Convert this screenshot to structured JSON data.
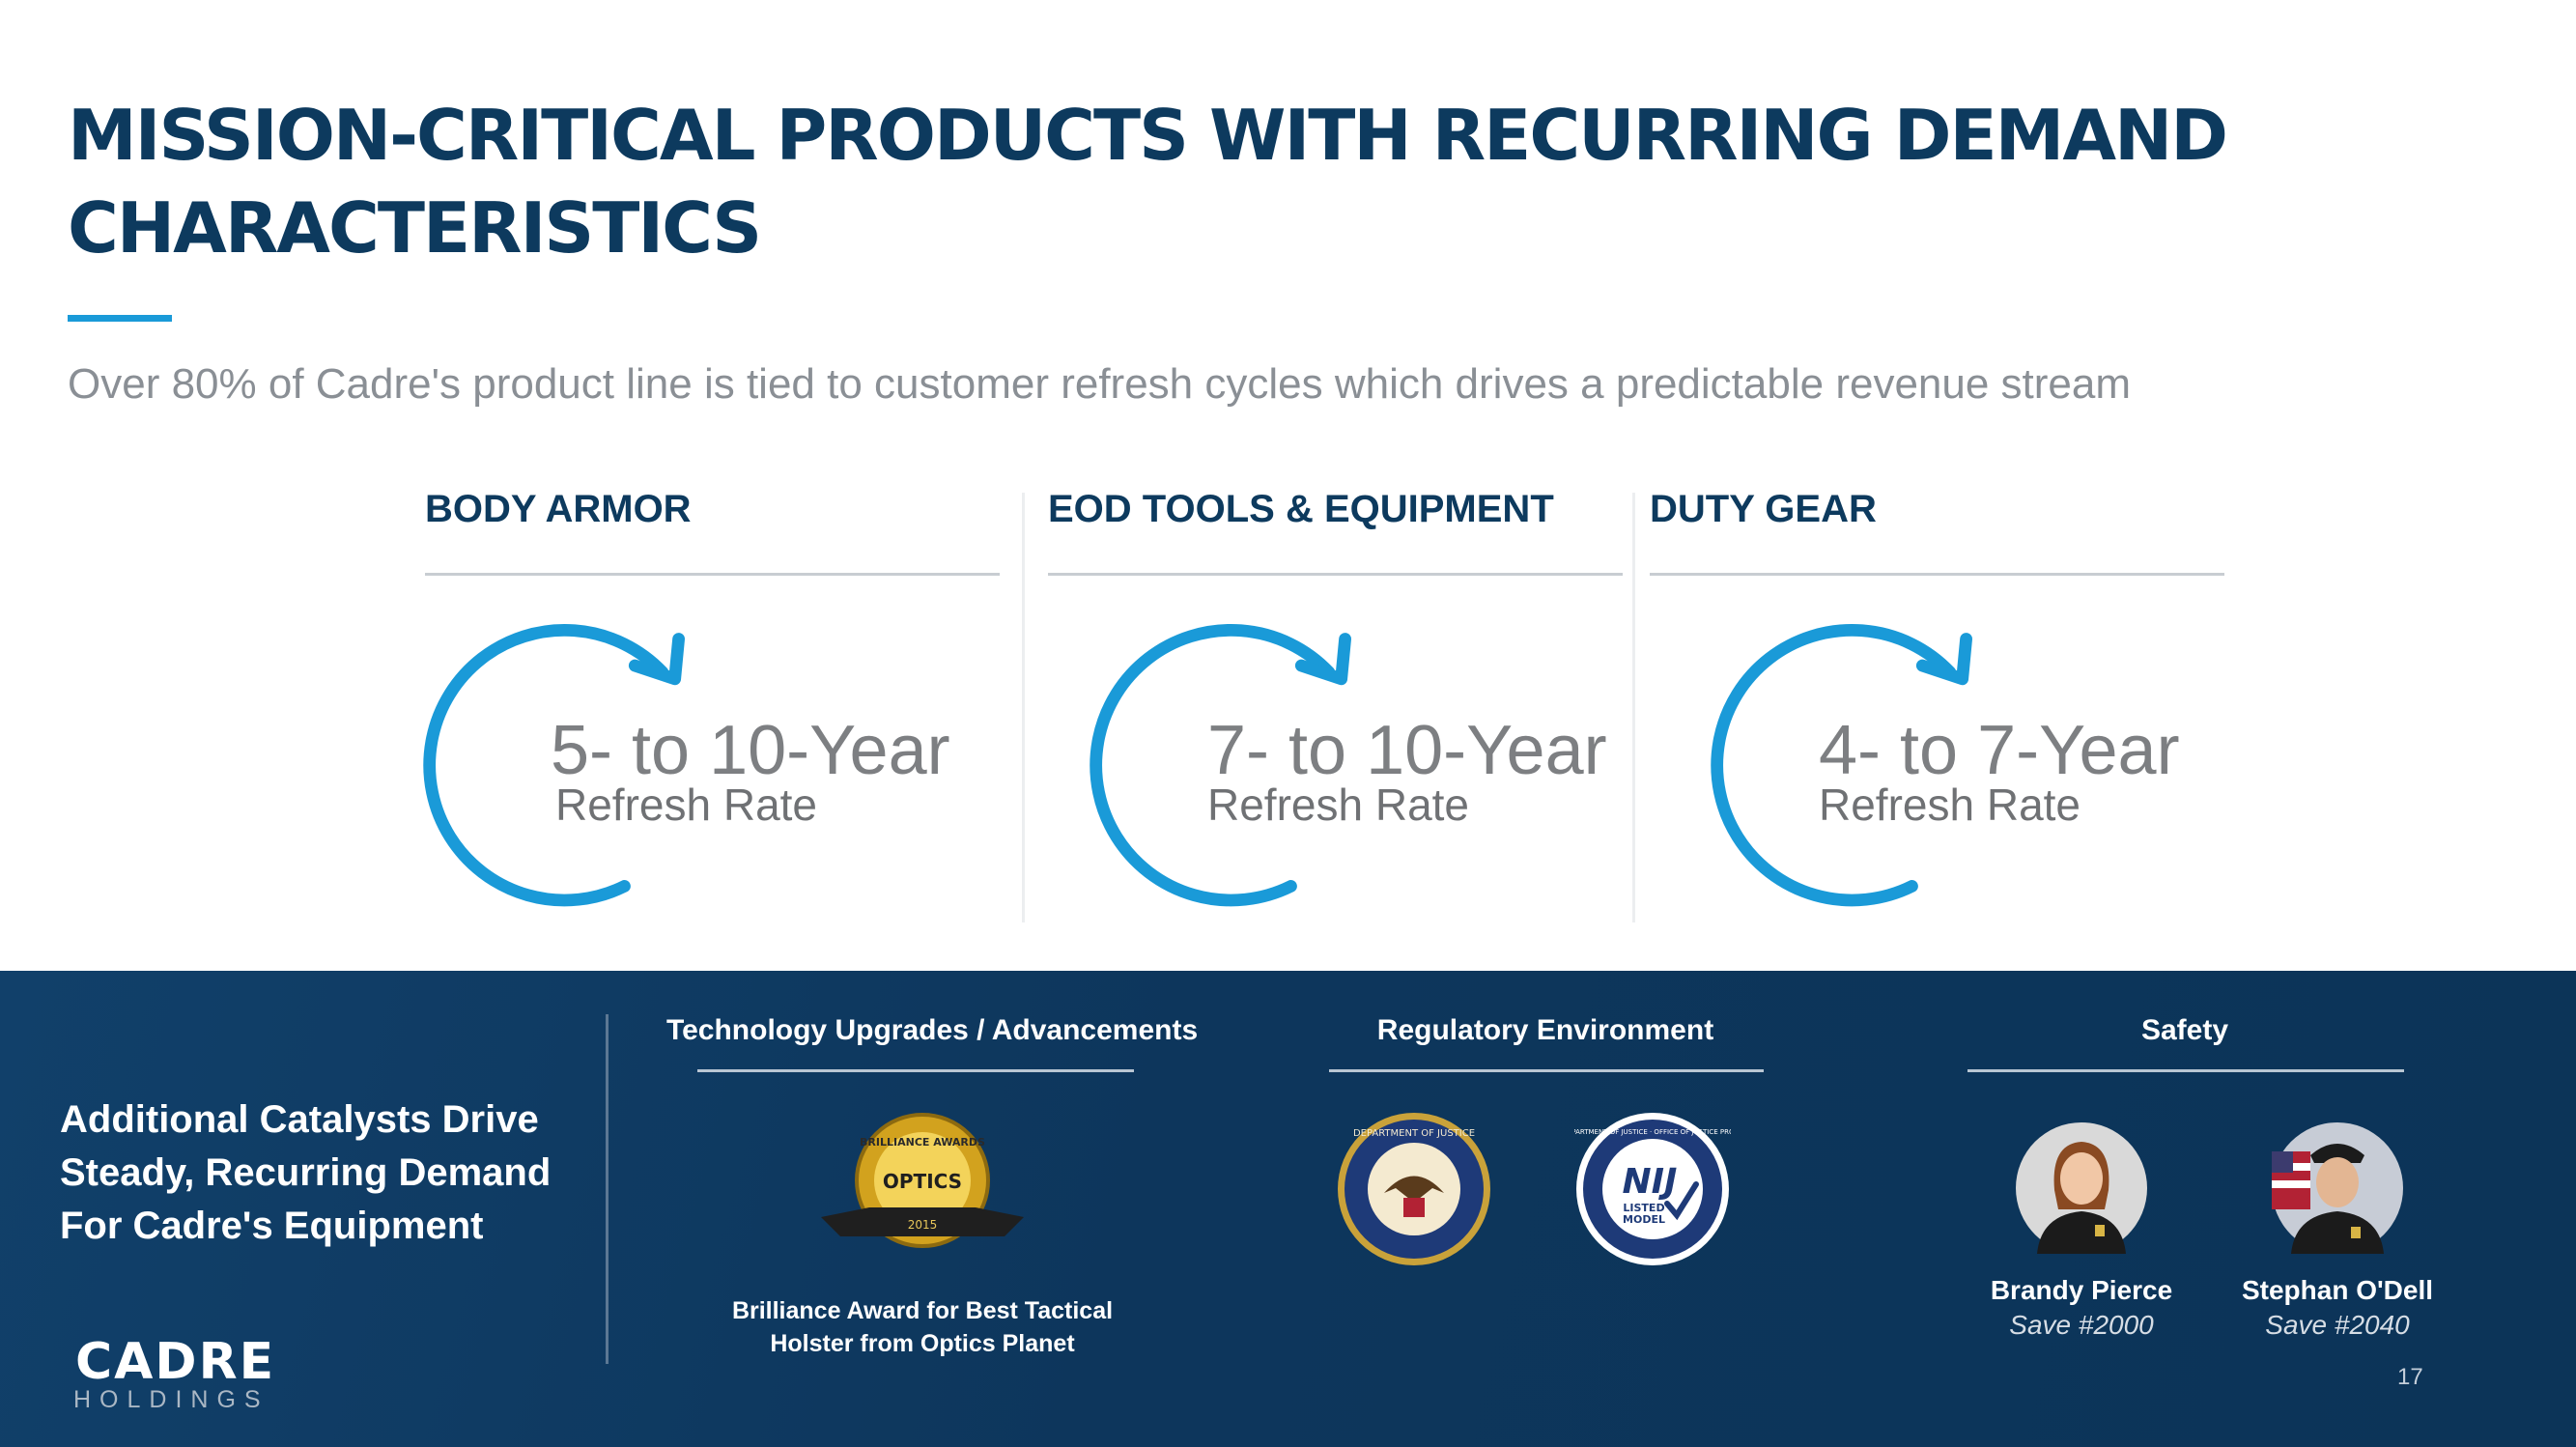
{
  "title": "Mission-Critical Products With Recurring Demand Characteristics",
  "subtitle": "Over 80% of Cadre's product line is tied to customer refresh cycles which drives a predictable revenue stream",
  "columns": [
    {
      "heading": "BODY ARMOR",
      "range": "5- to 10-Year",
      "label": "Refresh Rate"
    },
    {
      "heading": "EOD TOOLS & EQUIPMENT",
      "range": "7- to 10-Year",
      "label": "Refresh Rate"
    },
    {
      "heading": "DUTY GEAR",
      "range": "4- to 7-Year",
      "label": "Refresh Rate"
    }
  ],
  "colors": {
    "navy": "#0d3a5e",
    "accent_blue": "#1a9ad8",
    "band": "#0d365c"
  },
  "catalysts": {
    "heading": "Additional Catalysts Drive Steady, Recurring Demand For Cadre's Equipment",
    "technology": {
      "title": "Technology Upgrades / Advancements",
      "award_caption": "Brilliance Award for Best Tactical Holster from Optics Planet",
      "badge_text": "BRILLIANCE AWARDS",
      "badge_sub": "OPTICS",
      "badge_year": "2015"
    },
    "regulatory": {
      "title": "Regulatory Environment",
      "doj_ring_text": "DEPARTMENT OF JUSTICE",
      "nij_ring_text": "U.S. DEPARTMENT OF JUSTICE · OFFICE OF JUSTICE PROGRAMS",
      "nij_mark": "NIJ",
      "nij_listed": "LISTED",
      "nij_model": "MODEL"
    },
    "safety": {
      "title": "Safety",
      "people": [
        {
          "name": "Brandy Pierce",
          "save": "Save #2000"
        },
        {
          "name": "Stephan O'Dell",
          "save": "Save #2040"
        }
      ]
    }
  },
  "logo": {
    "word": "CADRE",
    "sub": "HOLDINGS"
  },
  "page_number": "17"
}
